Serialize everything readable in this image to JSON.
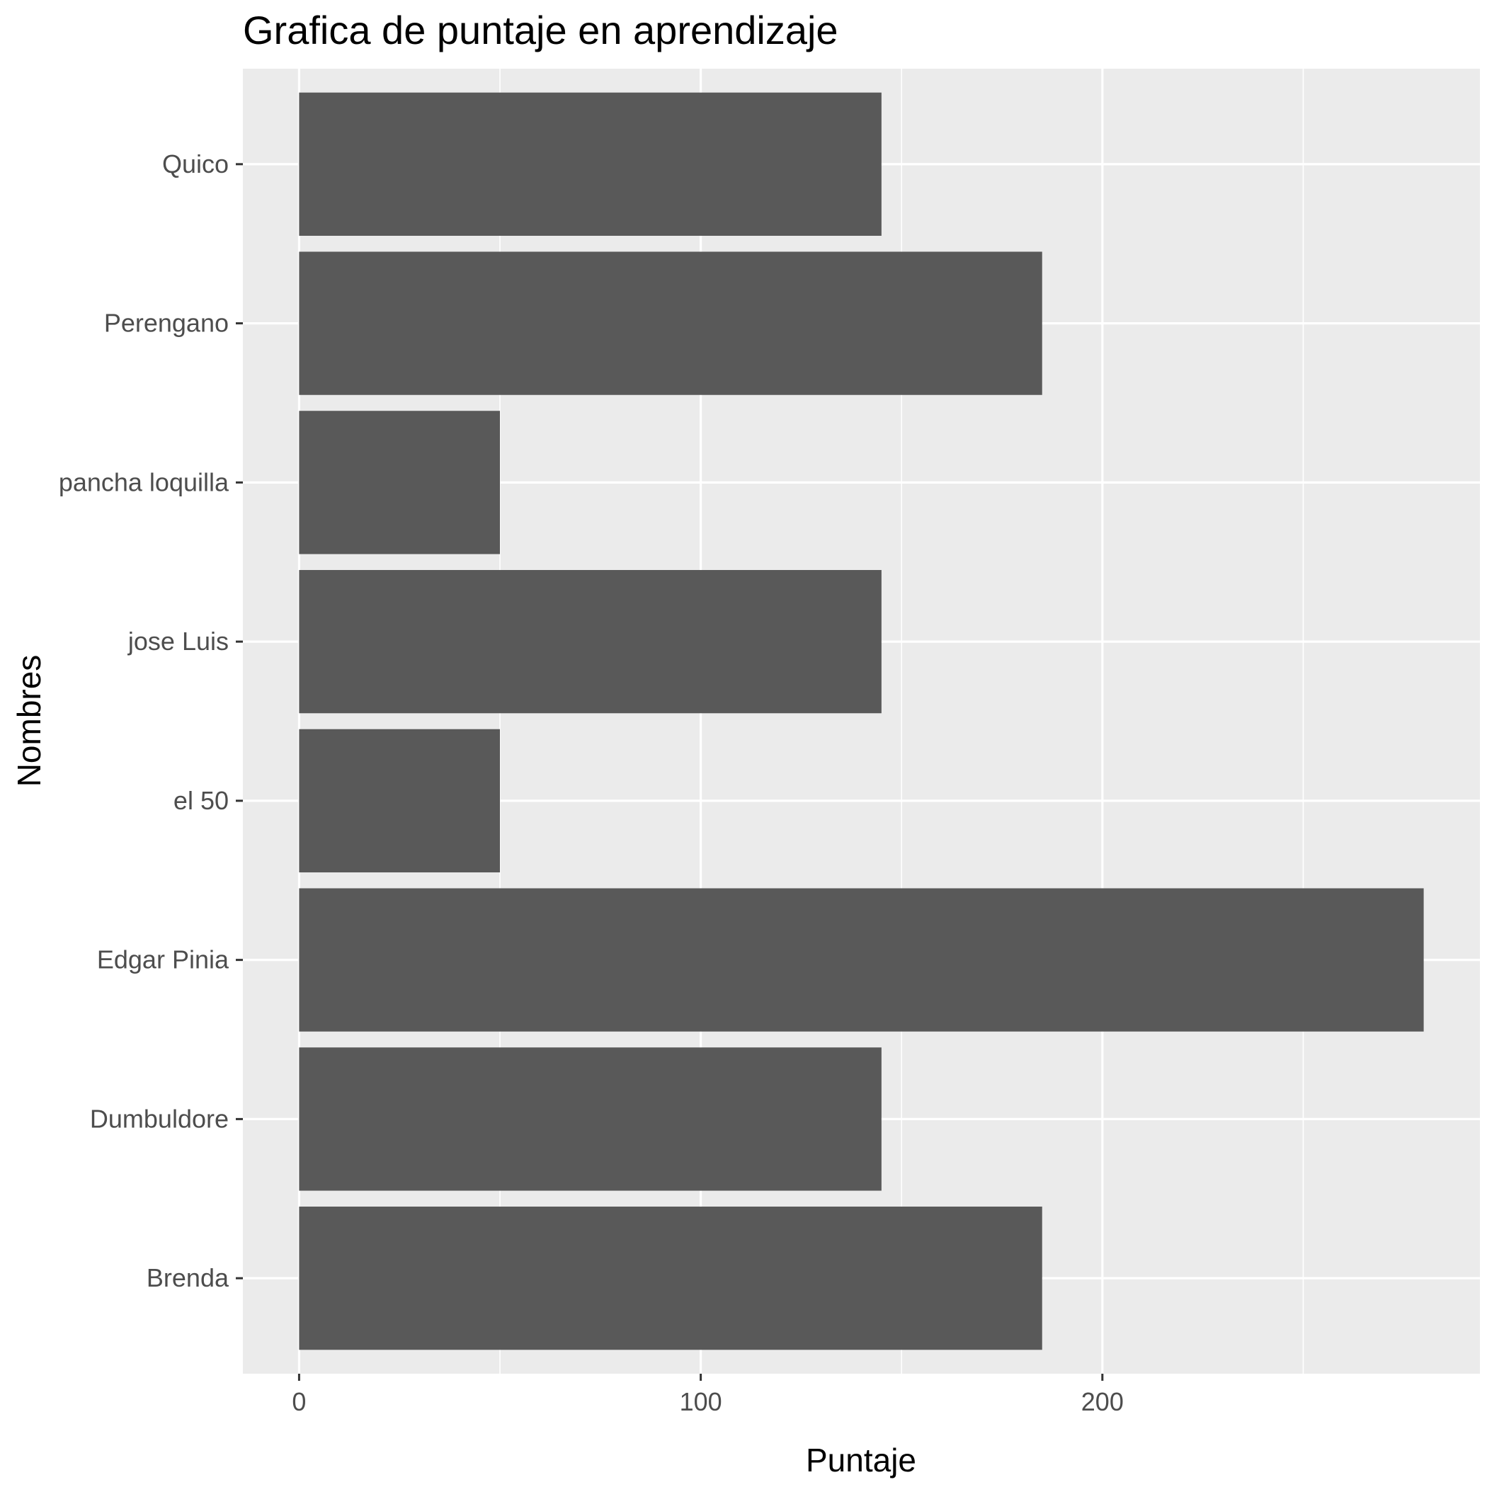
{
  "chart_data": {
    "type": "bar",
    "orientation": "horizontal",
    "title": "Grafica de puntaje en aprendizaje",
    "xlabel": "Puntaje",
    "ylabel": "Nombres",
    "categories": [
      "Brenda",
      "Dumbuldore",
      "Edgar Pinia",
      "el 50",
      "jose Luis",
      "pancha loquilla",
      "Perengano",
      "Quico"
    ],
    "values": [
      185,
      145,
      280,
      50,
      145,
      50,
      185,
      145
    ],
    "xlim": [
      -14,
      294
    ],
    "x_ticks": [
      0,
      100,
      200
    ],
    "grid": true,
    "legend": "none",
    "colors": {
      "bar": "#595959",
      "panel": "#ebebeb",
      "grid": "#ffffff"
    }
  }
}
